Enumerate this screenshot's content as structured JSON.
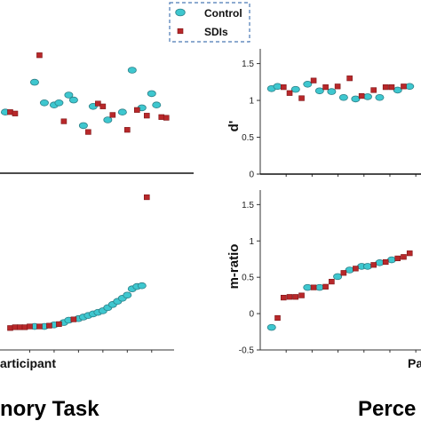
{
  "legend": {
    "entries": [
      {
        "label": "Control",
        "color": "#3ec7cf",
        "marker": "ellipse"
      },
      {
        "label": "SDIs",
        "color": "#b8282a",
        "marker": "square"
      }
    ]
  },
  "tasks": [
    {
      "title": "nory Task",
      "xlabel": "articipant"
    },
    {
      "title": "Perce",
      "xlabel": "Pa"
    }
  ],
  "chart_data": [
    {
      "type": "scatter",
      "panel": "memory-top",
      "xlabel": "articipant",
      "ylabel": "",
      "series": [
        {
          "name": "Control",
          "points": [
            [
              0,
              0.86
            ],
            [
              6,
              1.28
            ],
            [
              8,
              0.99
            ],
            [
              10,
              0.96
            ],
            [
              11,
              0.99
            ],
            [
              13,
              1.1
            ],
            [
              14,
              1.03
            ],
            [
              16,
              0.67
            ],
            [
              18,
              0.94
            ],
            [
              21,
              0.75
            ],
            [
              24,
              0.86
            ],
            [
              26,
              1.45
            ],
            [
              28,
              0.92
            ],
            [
              30,
              1.12
            ],
            [
              31,
              0.96
            ]
          ]
        },
        {
          "name": "SDIs",
          "points": [
            [
              1,
              0.86
            ],
            [
              2,
              0.84
            ],
            [
              7,
              1.66
            ],
            [
              12,
              0.73
            ],
            [
              17,
              0.58
            ],
            [
              19,
              0.98
            ],
            [
              20,
              0.94
            ],
            [
              22,
              0.82
            ],
            [
              25,
              0.61
            ],
            [
              27,
              0.89
            ],
            [
              29,
              0.81
            ],
            [
              32,
              0.79
            ],
            [
              33,
              0.78
            ]
          ]
        }
      ]
    },
    {
      "type": "scatter",
      "panel": "memory-bottom",
      "xlabel": "articipant",
      "ylabel": "",
      "series": [
        {
          "name": "Control",
          "points": [
            [
              6,
              0.1
            ],
            [
              8,
              0.1
            ],
            [
              10,
              0.12
            ],
            [
              12,
              0.15
            ],
            [
              13,
              0.18
            ],
            [
              15,
              0.2
            ],
            [
              16,
              0.22
            ],
            [
              17,
              0.24
            ],
            [
              18,
              0.26
            ],
            [
              19,
              0.28
            ],
            [
              20,
              0.3
            ],
            [
              21,
              0.34
            ],
            [
              22,
              0.38
            ],
            [
              23,
              0.42
            ],
            [
              24,
              0.46
            ],
            [
              25,
              0.5
            ],
            [
              26,
              0.58
            ],
            [
              27,
              0.61
            ],
            [
              28,
              0.62
            ]
          ]
        },
        {
          "name": "SDIs",
          "points": [
            [
              1,
              0.08
            ],
            [
              2,
              0.09
            ],
            [
              3,
              0.09
            ],
            [
              4,
              0.09
            ],
            [
              5,
              0.1
            ],
            [
              7,
              0.1
            ],
            [
              9,
              0.11
            ],
            [
              11,
              0.13
            ],
            [
              14,
              0.19
            ],
            [
              29,
              1.75
            ]
          ]
        }
      ]
    },
    {
      "type": "scatter",
      "panel": "perception-top",
      "xlabel": "Pa",
      "ylabel": "d'",
      "ylim": [
        0,
        1.7
      ],
      "yticks": [
        "0",
        "0.5",
        "1",
        "1.5"
      ],
      "series": [
        {
          "name": "Control",
          "points": [
            [
              1,
              1.16
            ],
            [
              2,
              1.19
            ],
            [
              5,
              1.15
            ],
            [
              7,
              1.22
            ],
            [
              9,
              1.13
            ],
            [
              11,
              1.12
            ],
            [
              13,
              1.04
            ],
            [
              15,
              1.02
            ],
            [
              17,
              1.05
            ],
            [
              19,
              1.04
            ],
            [
              22,
              1.14
            ],
            [
              24,
              1.19
            ]
          ]
        },
        {
          "name": "SDIs",
          "points": [
            [
              3,
              1.18
            ],
            [
              4,
              1.1
            ],
            [
              6,
              1.03
            ],
            [
              8,
              1.27
            ],
            [
              10,
              1.18
            ],
            [
              12,
              1.19
            ],
            [
              14,
              1.3
            ],
            [
              16,
              1.06
            ],
            [
              18,
              1.14
            ],
            [
              20,
              1.18
            ],
            [
              21,
              1.18
            ],
            [
              23,
              1.19
            ]
          ]
        }
      ]
    },
    {
      "type": "scatter",
      "panel": "perception-bottom",
      "xlabel": "Pa",
      "ylabel": "m-ratio",
      "ylim": [
        -0.5,
        1.7
      ],
      "yticks": [
        "-0.5",
        "0",
        "0.5",
        "1",
        "1.5"
      ],
      "series": [
        {
          "name": "Control",
          "points": [
            [
              1,
              -0.19
            ],
            [
              7,
              0.36
            ],
            [
              9,
              0.36
            ],
            [
              12,
              0.51
            ],
            [
              14,
              0.6
            ],
            [
              16,
              0.65
            ],
            [
              17,
              0.65
            ],
            [
              19,
              0.7
            ],
            [
              21,
              0.74
            ]
          ]
        },
        {
          "name": "SDIs",
          "points": [
            [
              2,
              -0.06
            ],
            [
              3,
              0.22
            ],
            [
              4,
              0.23
            ],
            [
              5,
              0.23
            ],
            [
              6,
              0.25
            ],
            [
              8,
              0.36
            ],
            [
              10,
              0.37
            ],
            [
              11,
              0.44
            ],
            [
              13,
              0.56
            ],
            [
              15,
              0.62
            ],
            [
              18,
              0.67
            ],
            [
              20,
              0.71
            ],
            [
              22,
              0.76
            ],
            [
              23,
              0.78
            ],
            [
              24,
              0.83
            ]
          ]
        }
      ]
    }
  ]
}
